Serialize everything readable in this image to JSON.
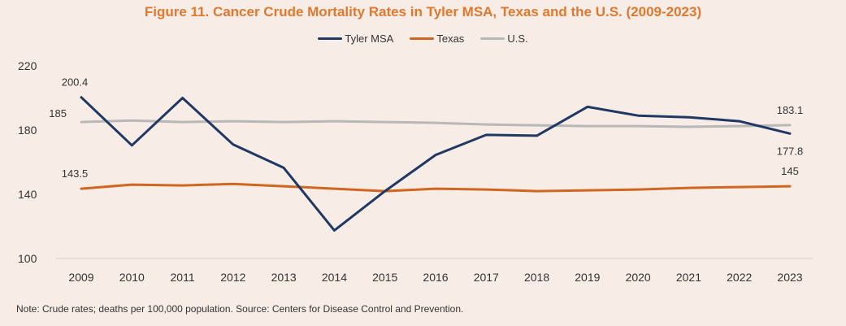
{
  "chart_data": {
    "type": "line",
    "title": "Figure 11. Cancer Crude Mortality Rates in Tyler MSA, Texas and the U.S. (2009-2023)",
    "xlabel": "",
    "ylabel": "",
    "ylim": [
      100,
      220
    ],
    "yticks": [
      "100",
      "140",
      "180",
      "220"
    ],
    "categories": [
      "2009",
      "2010",
      "2011",
      "2012",
      "2013",
      "2014",
      "2015",
      "2016",
      "2017",
      "2018",
      "2019",
      "2020",
      "2021",
      "2022",
      "2023"
    ],
    "legend_position": "top-center",
    "series": [
      {
        "name": "Tyler MSA",
        "color": "#1f3864",
        "values": [
          200.4,
          170.5,
          200.0,
          171.0,
          156.5,
          117.5,
          142.0,
          164.5,
          177.0,
          176.5,
          194.5,
          189.0,
          188.0,
          185.5,
          177.8
        ]
      },
      {
        "name": "Texas",
        "color": "#d0661f",
        "values": [
          143.5,
          146.0,
          145.5,
          146.5,
          145.0,
          143.5,
          142.0,
          143.5,
          143.0,
          142.0,
          142.5,
          143.0,
          144.0,
          144.5,
          145.0
        ]
      },
      {
        "name": "U.S.",
        "color": "#b8b8b8",
        "values": [
          185.0,
          186.0,
          185.0,
          185.5,
          185.0,
          185.5,
          185.0,
          184.5,
          183.5,
          183.0,
          182.5,
          182.5,
          182.0,
          182.5,
          183.1
        ]
      }
    ],
    "data_labels": [
      {
        "text": "200.4",
        "series": 0,
        "index": 0,
        "placement": "above"
      },
      {
        "text": "185",
        "series": 2,
        "index": 0,
        "placement": "left-above"
      },
      {
        "text": "143.5",
        "series": 1,
        "index": 0,
        "placement": "above"
      },
      {
        "text": "183.1",
        "series": 2,
        "index": 14,
        "placement": "above"
      },
      {
        "text": "177.8",
        "series": 0,
        "index": 14,
        "placement": "below"
      },
      {
        "text": "145",
        "series": 1,
        "index": 14,
        "placement": "above"
      }
    ]
  },
  "footer": {
    "note": "Note: Crude rates; deaths per 100,000 population. Source: Centers for Disease Control and Prevention."
  }
}
